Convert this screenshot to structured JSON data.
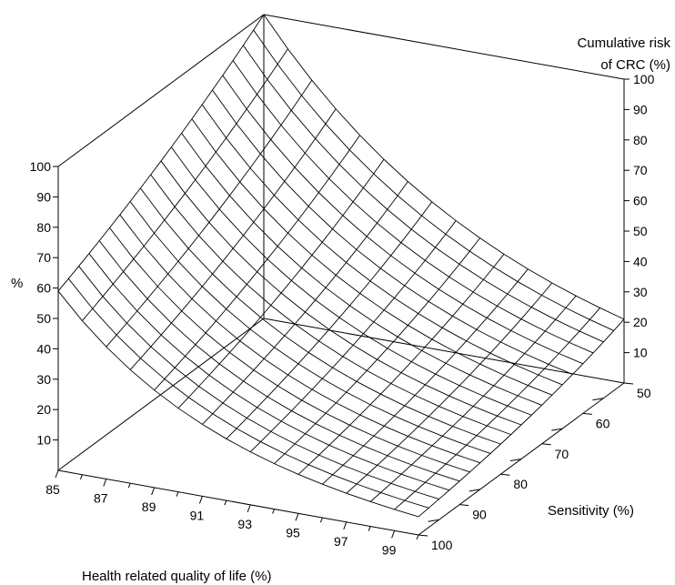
{
  "chart_data": {
    "type": "surface3d",
    "title": "",
    "xlabel": "Health related quality of life (%)",
    "ylabel": "Sensitivity (%)",
    "zlabel": "%",
    "zlabel_right_line1": "Cumulative risk",
    "zlabel_right_line2": "of CRC (%)",
    "x_range": [
      85,
      100
    ],
    "y_range": [
      50,
      100
    ],
    "z_range": [
      0,
      100
    ],
    "x_ticks": [
      "85",
      "87",
      "89",
      "91",
      "93",
      "95",
      "97",
      "99"
    ],
    "y_ticks": [
      "50",
      "60",
      "70",
      "80",
      "90",
      "100"
    ],
    "z_ticks_left": [
      "10",
      "20",
      "30",
      "40",
      "50",
      "60",
      "70",
      "80",
      "90",
      "100"
    ],
    "z_ticks_right": [
      "10",
      "20",
      "30",
      "40",
      "50",
      "60",
      "70",
      "80",
      "90",
      "100"
    ],
    "surface_corners": {
      "hrqol_85_sens_50": 100,
      "hrqol_85_sens_100": 59,
      "hrqol_100_sens_50": 21,
      "hrqol_100_sens_100": 6
    },
    "grid_resolution": {
      "x_steps": 15,
      "y_steps": 20
    }
  }
}
